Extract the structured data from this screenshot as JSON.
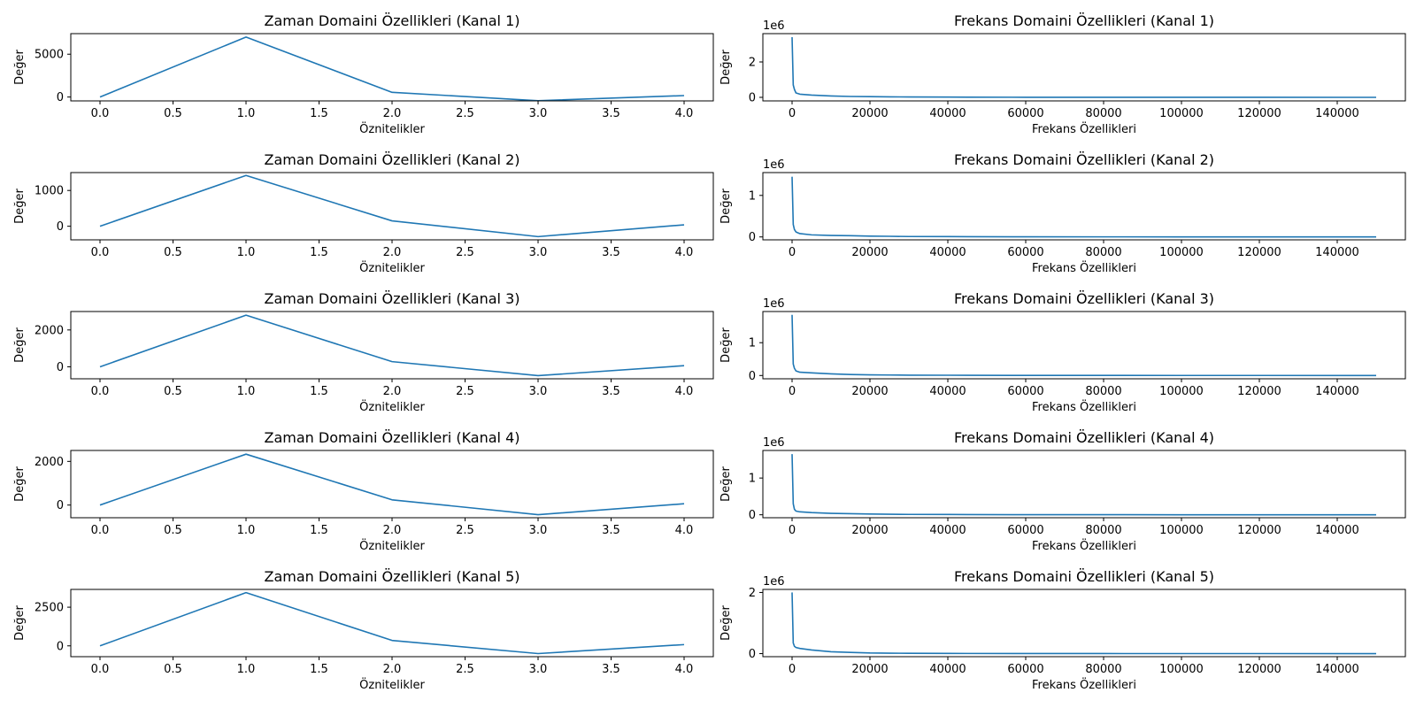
{
  "line_color": "#1f77b4",
  "chart_data": [
    {
      "type": "line",
      "title": "Zaman Domaini Özellikleri (Kanal 1)",
      "xlabel": "Öznitelikler",
      "ylabel": "Değer",
      "offset_text": "",
      "xlim": [
        -0.2,
        4.2
      ],
      "ylim": [
        -450,
        7400
      ],
      "xticks": [
        0.0,
        0.5,
        1.0,
        1.5,
        2.0,
        2.5,
        3.0,
        3.5,
        4.0
      ],
      "xtick_labels": [
        "0.0",
        "0.5",
        "1.0",
        "1.5",
        "2.0",
        "2.5",
        "3.0",
        "3.5",
        "4.0"
      ],
      "yticks": [
        0,
        5000
      ],
      "ytick_labels": [
        "0",
        "5000"
      ],
      "x": [
        0,
        1,
        2,
        3,
        4
      ],
      "y": [
        0,
        7000,
        550,
        -430,
        170
      ]
    },
    {
      "type": "line",
      "title": "Frekans Domaini Özellikleri (Kanal 1)",
      "xlabel": "Frekans Özellikleri",
      "ylabel": "Değer",
      "offset_text": "1e6",
      "xlim": [
        -7500,
        157500
      ],
      "ylim": [
        -0.2,
        3.6
      ],
      "xticks": [
        0,
        20000,
        40000,
        60000,
        80000,
        100000,
        120000,
        140000
      ],
      "xtick_labels": [
        "0",
        "20000",
        "40000",
        "60000",
        "80000",
        "100000",
        "120000",
        "140000"
      ],
      "yticks": [
        0,
        2
      ],
      "ytick_labels": [
        "0",
        "2"
      ],
      "x": [
        0,
        300,
        600,
        1000,
        2000,
        5000,
        10000,
        15000,
        20000,
        25000,
        30000,
        40000,
        45000,
        60000,
        80000,
        100000,
        120000,
        150000
      ],
      "y": [
        3.4,
        0.7,
        0.45,
        0.25,
        0.18,
        0.13,
        0.08,
        0.05,
        0.04,
        0.03,
        0.02,
        0.015,
        0.01,
        0.005,
        0.003,
        0.002,
        0.001,
        0.0
      ]
    },
    {
      "type": "line",
      "title": "Zaman Domaini Özellikleri (Kanal 2)",
      "xlabel": "Öznitelikler",
      "ylabel": "Değer",
      "offset_text": "",
      "xlim": [
        -0.2,
        4.2
      ],
      "ylim": [
        -380,
        1500
      ],
      "xticks": [
        0.0,
        0.5,
        1.0,
        1.5,
        2.0,
        2.5,
        3.0,
        3.5,
        4.0
      ],
      "xtick_labels": [
        "0.0",
        "0.5",
        "1.0",
        "1.5",
        "2.0",
        "2.5",
        "3.0",
        "3.5",
        "4.0"
      ],
      "yticks": [
        0,
        1000
      ],
      "ytick_labels": [
        "0",
        "1000"
      ],
      "x": [
        0,
        1,
        2,
        3,
        4
      ],
      "y": [
        0,
        1420,
        150,
        -290,
        40
      ]
    },
    {
      "type": "line",
      "title": "Frekans Domaini Özellikleri (Kanal 2)",
      "xlabel": "Frekans Özellikleri",
      "ylabel": "Değer",
      "offset_text": "1e6",
      "xlim": [
        -7500,
        157500
      ],
      "ylim": [
        -0.07,
        1.55
      ],
      "xticks": [
        0,
        20000,
        40000,
        60000,
        80000,
        100000,
        120000,
        140000
      ],
      "xtick_labels": [
        "0",
        "20000",
        "40000",
        "60000",
        "80000",
        "100000",
        "120000",
        "140000"
      ],
      "yticks": [
        0,
        1
      ],
      "ytick_labels": [
        "0",
        "1"
      ],
      "x": [
        0,
        300,
        600,
        1000,
        2000,
        5000,
        10000,
        15000,
        20000,
        25000,
        30000,
        40000,
        45000,
        60000,
        80000,
        100000,
        120000,
        150000
      ],
      "y": [
        1.45,
        0.3,
        0.18,
        0.12,
        0.08,
        0.05,
        0.035,
        0.03,
        0.02,
        0.015,
        0.01,
        0.008,
        0.005,
        0.003,
        0.002,
        0.001,
        0.001,
        0.0
      ]
    },
    {
      "type": "line",
      "title": "Zaman Domaini Özellikleri (Kanal 3)",
      "xlabel": "Öznitelikler",
      "ylabel": "Değer",
      "offset_text": "",
      "xlim": [
        -0.2,
        4.2
      ],
      "ylim": [
        -650,
        3000
      ],
      "xticks": [
        0.0,
        0.5,
        1.0,
        1.5,
        2.0,
        2.5,
        3.0,
        3.5,
        4.0
      ],
      "xtick_labels": [
        "0.0",
        "0.5",
        "1.0",
        "1.5",
        "2.0",
        "2.5",
        "3.0",
        "3.5",
        "4.0"
      ],
      "yticks": [
        0,
        2000
      ],
      "ytick_labels": [
        "0",
        "2000"
      ],
      "x": [
        0,
        1,
        2,
        3,
        4
      ],
      "y": [
        0,
        2800,
        280,
        -480,
        60
      ]
    },
    {
      "type": "line",
      "title": "Frekans Domaini Özellikleri (Kanal 3)",
      "xlabel": "Frekans Özellikleri",
      "ylabel": "Değer",
      "offset_text": "1e6",
      "xlim": [
        -7500,
        157500
      ],
      "ylim": [
        -0.1,
        1.95
      ],
      "xticks": [
        0,
        20000,
        40000,
        60000,
        80000,
        100000,
        120000,
        140000
      ],
      "xtick_labels": [
        "0",
        "20000",
        "40000",
        "60000",
        "80000",
        "100000",
        "120000",
        "140000"
      ],
      "yticks": [
        0,
        1
      ],
      "ytick_labels": [
        "0",
        "1"
      ],
      "x": [
        0,
        300,
        600,
        1000,
        2000,
        5000,
        10000,
        15000,
        20000,
        25000,
        30000,
        40000,
        45000,
        60000,
        80000,
        100000,
        120000,
        150000
      ],
      "y": [
        1.85,
        0.35,
        0.22,
        0.14,
        0.1,
        0.08,
        0.05,
        0.03,
        0.02,
        0.015,
        0.01,
        0.008,
        0.005,
        0.003,
        0.002,
        0.001,
        0.001,
        0.0
      ]
    },
    {
      "type": "line",
      "title": "Zaman Domaini Özellikleri (Kanal 4)",
      "xlabel": "Öznitelikler",
      "ylabel": "Değer",
      "offset_text": "",
      "xlim": [
        -0.2,
        4.2
      ],
      "ylim": [
        -580,
        2500
      ],
      "xticks": [
        0.0,
        0.5,
        1.0,
        1.5,
        2.0,
        2.5,
        3.0,
        3.5,
        4.0
      ],
      "xtick_labels": [
        "0.0",
        "0.5",
        "1.0",
        "1.5",
        "2.0",
        "2.5",
        "3.0",
        "3.5",
        "4.0"
      ],
      "yticks": [
        0,
        2000
      ],
      "ytick_labels": [
        "0",
        "2000"
      ],
      "x": [
        0,
        1,
        2,
        3,
        4
      ],
      "y": [
        0,
        2330,
        240,
        -440,
        60
      ]
    },
    {
      "type": "line",
      "title": "Frekans Domaini Özellikleri (Kanal 4)",
      "xlabel": "Frekans Özellikleri",
      "ylabel": "Değer",
      "offset_text": "1e6",
      "xlim": [
        -7500,
        157500
      ],
      "ylim": [
        -0.08,
        1.75
      ],
      "xticks": [
        0,
        20000,
        40000,
        60000,
        80000,
        100000,
        120000,
        140000
      ],
      "xtick_labels": [
        "0",
        "20000",
        "40000",
        "60000",
        "80000",
        "100000",
        "120000",
        "140000"
      ],
      "yticks": [
        0,
        1
      ],
      "ytick_labels": [
        "0",
        "1"
      ],
      "x": [
        0,
        300,
        600,
        1000,
        2000,
        5000,
        10000,
        15000,
        20000,
        25000,
        30000,
        40000,
        45000,
        60000,
        80000,
        100000,
        120000,
        150000
      ],
      "y": [
        1.65,
        0.3,
        0.15,
        0.1,
        0.08,
        0.06,
        0.04,
        0.03,
        0.02,
        0.015,
        0.01,
        0.008,
        0.005,
        0.003,
        0.002,
        0.001,
        0.001,
        0.0
      ]
    },
    {
      "type": "line",
      "title": "Zaman Domaini Özellikleri (Kanal 5)",
      "xlabel": "Öznitelikler",
      "ylabel": "Değer",
      "offset_text": "",
      "xlim": [
        -0.2,
        4.2
      ],
      "ylim": [
        -700,
        3650
      ],
      "xticks": [
        0.0,
        0.5,
        1.0,
        1.5,
        2.0,
        2.5,
        3.0,
        3.5,
        4.0
      ],
      "xtick_labels": [
        "0.0",
        "0.5",
        "1.0",
        "1.5",
        "2.0",
        "2.5",
        "3.0",
        "3.5",
        "4.0"
      ],
      "yticks": [
        0,
        2500
      ],
      "ytick_labels": [
        "0",
        "2500"
      ],
      "x": [
        0,
        1,
        2,
        3,
        4
      ],
      "y": [
        0,
        3440,
        350,
        -500,
        80
      ]
    },
    {
      "type": "line",
      "title": "Frekans Domaini Özellikleri (Kanal 5)",
      "xlabel": "Frekans Özellikleri",
      "ylabel": "Değer",
      "offset_text": "1e6",
      "xlim": [
        -7500,
        157500
      ],
      "ylim": [
        -0.1,
        2.1
      ],
      "xticks": [
        0,
        20000,
        40000,
        60000,
        80000,
        100000,
        120000,
        140000
      ],
      "xtick_labels": [
        "0",
        "20000",
        "40000",
        "60000",
        "80000",
        "100000",
        "120000",
        "140000"
      ],
      "yticks": [
        0,
        2
      ],
      "ytick_labels": [
        "0",
        "2"
      ],
      "x": [
        0,
        300,
        600,
        1000,
        2000,
        5000,
        10000,
        15000,
        20000,
        25000,
        30000,
        40000,
        45000,
        60000,
        80000,
        100000,
        120000,
        150000
      ],
      "y": [
        2.0,
        0.35,
        0.24,
        0.2,
        0.17,
        0.12,
        0.06,
        0.04,
        0.02,
        0.015,
        0.01,
        0.008,
        0.005,
        0.003,
        0.002,
        0.001,
        0.001,
        0.0
      ]
    }
  ]
}
